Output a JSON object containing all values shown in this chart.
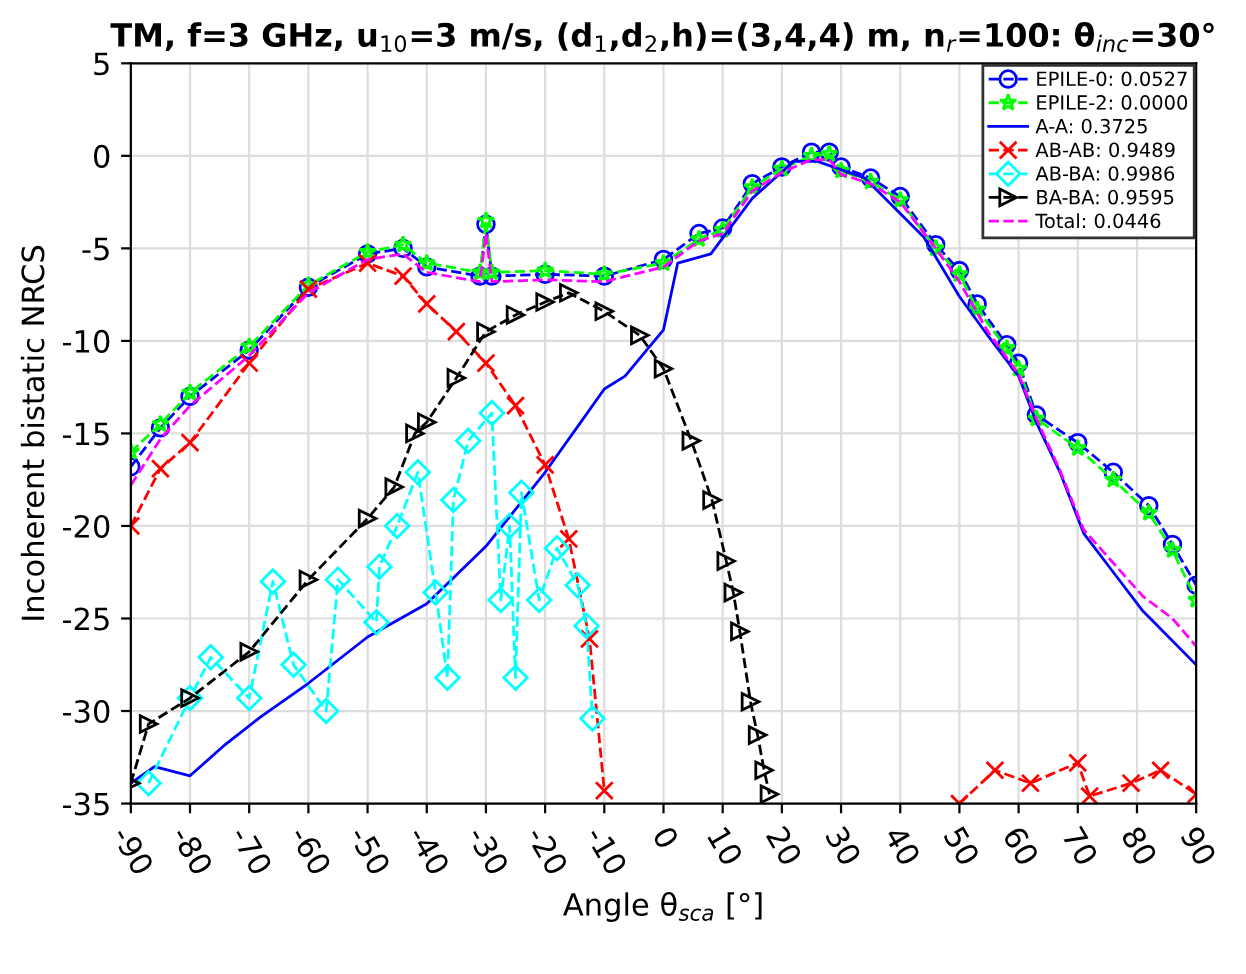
{
  "chart_data": {
    "type": "line",
    "title": "TM, f=3 GHz, u$_{10}$=3 m/s, (d$_{1}$,d$_{2}$,h)=(3,4,4) m, n$_{r}$=100: θ$_{inc}$=30°",
    "xlabel": "Angle θ$_{sca}$ [°]",
    "ylabel": "Incoherent bistatic NRCS",
    "xlim": [
      -90,
      90
    ],
    "xticks": [
      -90,
      -80,
      -70,
      -60,
      -50,
      -40,
      -30,
      -20,
      -10,
      0,
      10,
      20,
      30,
      40,
      50,
      60,
      70,
      80,
      90
    ],
    "ylim": [
      -35,
      5
    ],
    "yticks": [
      -35,
      -30,
      -25,
      -20,
      -15,
      -10,
      -5,
      0,
      5
    ],
    "grid": true,
    "legend": "top right",
    "series": [
      {
        "name": "EPILE-0: 0.0527",
        "color": "#0000ff",
        "marker": "circle",
        "line_style": "dashed",
        "x": [
          -90,
          -85,
          -80,
          -70,
          -60,
          -50,
          -44,
          -40,
          -31,
          -30,
          -29,
          -20,
          -10,
          0,
          6,
          10,
          15,
          20,
          25,
          28,
          30,
          35,
          40,
          46,
          50,
          53,
          58,
          60,
          63,
          70,
          76,
          82,
          86,
          90
        ],
        "values": [
          -16.8,
          -14.7,
          -13,
          -10.5,
          -7.1,
          -5.3,
          -5,
          -6,
          -6.5,
          -3.7,
          -6.5,
          -6.4,
          -6.5,
          -5.6,
          -4.2,
          -3.9,
          -1.5,
          -0.6,
          0.2,
          0.2,
          -0.6,
          -1.2,
          -2.2,
          -4.8,
          -6.2,
          -8,
          -10.2,
          -11.2,
          -14,
          -15.5,
          -17.1,
          -18.9,
          -21,
          -23.2
        ]
      },
      {
        "name": "EPILE-2: 0.0000",
        "color": "#00ff00",
        "marker": "star",
        "line_style": "dashed",
        "x": [
          -90,
          -85,
          -80,
          -70,
          -60,
          -50,
          -44,
          -40,
          -31,
          -30,
          -29,
          -20,
          -10,
          0,
          6,
          10,
          15,
          20,
          25,
          28,
          30,
          35,
          40,
          46,
          50,
          53,
          58,
          60,
          63,
          70,
          76,
          82,
          86,
          90
        ],
        "values": [
          -16,
          -14.5,
          -12.8,
          -10.3,
          -7,
          -5.2,
          -4.8,
          -5.8,
          -6.3,
          -3.5,
          -6.3,
          -6.2,
          -6.4,
          -5.8,
          -4.5,
          -4,
          -1.7,
          -0.7,
          0,
          0.1,
          -0.8,
          -1.4,
          -2.4,
          -5,
          -6.4,
          -8.3,
          -10.4,
          -11.5,
          -14.2,
          -15.8,
          -17.5,
          -19.3,
          -21.3,
          -24
        ]
      },
      {
        "name": "A-A: 0.3725",
        "color": "#0000ff",
        "marker": "none",
        "line_style": "solid",
        "x": [
          -90,
          -86,
          -80,
          -74,
          -68,
          -60,
          -50,
          -40,
          -30,
          -20,
          -14,
          -10,
          -6.5,
          0,
          2.4,
          8,
          15,
          22,
          26,
          34,
          44,
          50,
          55,
          60,
          63,
          67,
          71,
          76,
          81,
          90
        ],
        "values": [
          -33.9,
          -33,
          -33.5,
          -31.8,
          -30.3,
          -28.5,
          -26,
          -24.2,
          -21.1,
          -17.1,
          -14.4,
          -12.6,
          -11.9,
          -9.4,
          -5.8,
          -5.3,
          -2.3,
          -0.3,
          -0.3,
          -1.2,
          -4.4,
          -7.6,
          -9.8,
          -11.9,
          -14.4,
          -17.1,
          -20.4,
          -22.5,
          -24.6,
          -27.5
        ]
      },
      {
        "name": "AB-AB: 0.9489",
        "color": "#ff0000",
        "marker": "cross",
        "line_style": "dashed",
        "x": [
          -90,
          -85,
          -80,
          -70,
          -60,
          -50,
          -44,
          -40,
          -35,
          -30,
          -25,
          -20,
          -16,
          -12.5,
          -10,
          30,
          50,
          56,
          62,
          70,
          72,
          79,
          84,
          90
        ],
        "values": [
          -20,
          -16.9,
          -15.5,
          -11.2,
          -7.2,
          -5.8,
          -6.5,
          -8,
          -9.5,
          -11.2,
          -13.5,
          -16.7,
          -20.7,
          -26.1,
          -34.3,
          null,
          -35,
          -33.2,
          -33.9,
          -32.8,
          -34.6,
          -33.9,
          -33.2,
          -34.5
        ]
      },
      {
        "name": "AB-BA: 0.9986",
        "color": "#00ffff",
        "marker": "diamond",
        "line_style": "dashed",
        "x": [
          -87,
          -80,
          -76.5,
          -70,
          -66,
          -62.5,
          -57,
          -55,
          -48.5,
          -48,
          -45,
          -41.5,
          -38.5,
          -36.5,
          -35.5,
          -33,
          -29,
          -27.5,
          -26,
          -25,
          -24,
          -21,
          -18,
          -14.5,
          -13,
          -12
        ],
        "values": [
          -33.9,
          -29.3,
          -27.1,
          -29.3,
          -23,
          -27.5,
          -30,
          -22.9,
          -25.2,
          -22.2,
          -20,
          -17.1,
          -23.6,
          -28.2,
          -18.6,
          -15.4,
          -13.9,
          -24,
          -20,
          -28.2,
          -18.2,
          -24,
          -21.2,
          -23.2,
          -25.4,
          -30.4
        ]
      },
      {
        "name": "BA-BA: 0.9595",
        "color": "#000000",
        "marker": "triangle",
        "line_style": "dashed",
        "x": [
          -90,
          -87,
          -80,
          -70,
          -60,
          -50,
          -45.5,
          -42,
          -40,
          -35,
          -30,
          -25,
          -20,
          -16,
          -10,
          -4,
          0,
          4.7,
          8.2,
          10.6,
          11.8,
          12.9,
          14.7,
          15.9,
          17,
          17.9
        ],
        "values": [
          -33.9,
          -30.7,
          -29.3,
          -26.8,
          -22.9,
          -19.6,
          -17.9,
          -15,
          -14.4,
          -12,
          -9.5,
          -8.6,
          -7.9,
          -7.4,
          -8.4,
          -9.7,
          -11.5,
          -15.4,
          -18.6,
          -21.9,
          -23.6,
          -25.7,
          -29.5,
          -31.3,
          -33.2,
          -34.5
        ]
      },
      {
        "name": "Total: 0.0446",
        "color": "#ff00ff",
        "marker": "none",
        "line_style": "dashed",
        "x": [
          -90,
          -85,
          -80,
          -70,
          -60,
          -50,
          -44,
          -40,
          -31,
          -30,
          -29,
          -20,
          -10,
          0,
          6,
          10,
          15,
          20,
          25,
          28,
          30,
          35,
          40,
          46,
          50,
          55,
          60,
          63,
          67,
          71,
          76,
          81,
          86,
          90
        ],
        "values": [
          -17.8,
          -15.3,
          -13.5,
          -10.8,
          -7.4,
          -5.6,
          -5.3,
          -6.3,
          -6.8,
          -4.2,
          -6.8,
          -6.7,
          -6.8,
          -6,
          -4.6,
          -4.2,
          -1.9,
          -0.9,
          -0.2,
          -0.2,
          -1,
          -1.5,
          -2.5,
          -5,
          -6.8,
          -9.6,
          -11.8,
          -14.2,
          -17,
          -20.2,
          -22,
          -23.8,
          -25,
          -26.5
        ]
      }
    ]
  }
}
